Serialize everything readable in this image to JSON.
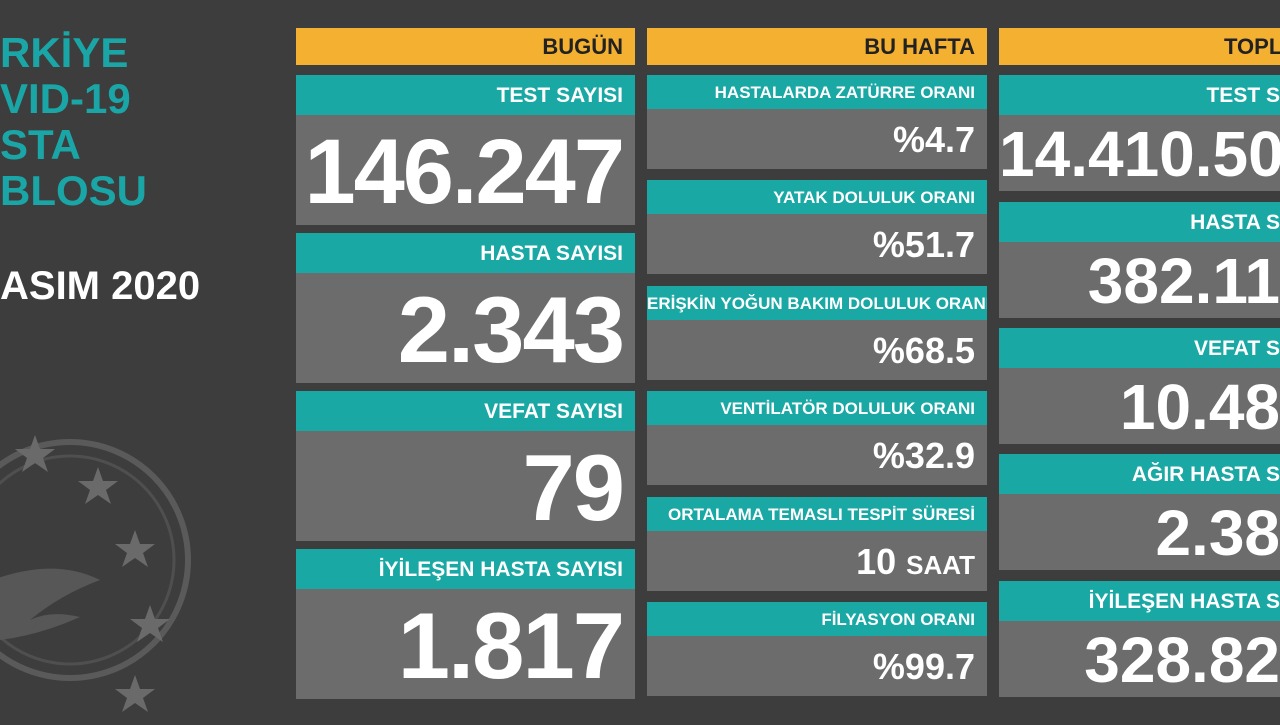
{
  "left": {
    "title": "RKİYE\nVID-19\nSTA\nBLOSU",
    "date": "ASIM 2020"
  },
  "columns": [
    {
      "header": "BUGÜN",
      "cards": [
        {
          "label": "TEST SAYISI",
          "value": "146.247"
        },
        {
          "label": "HASTA SAYISI",
          "value": "2.343"
        },
        {
          "label": "VEFAT SAYISI",
          "value": "79"
        },
        {
          "label": "İYİLEŞEN HASTA SAYISI",
          "value": "1.817"
        }
      ]
    },
    {
      "header": "BU HAFTA",
      "cards": [
        {
          "label": "HASTALARDA ZATÜRRE ORANI",
          "value": "%4.7"
        },
        {
          "label": "YATAK DOLULUK ORANI",
          "value": "%51.7"
        },
        {
          "label": "ERİŞKİN YOĞUN BAKIM DOLULUK ORANI",
          "value": "%68.5"
        },
        {
          "label": "VENTİLATÖR DOLULUK ORANI",
          "value": "%32.9"
        },
        {
          "label": "ORTALAMA TEMASLI TESPİT SÜRESİ",
          "value": "10",
          "unit": "SAAT"
        },
        {
          "label": "FİLYASYON ORANI",
          "value": "%99.7"
        }
      ]
    },
    {
      "header": "TOPL",
      "cards": [
        {
          "label": "TEST S",
          "value": "14.410.50"
        },
        {
          "label": "HASTA S",
          "value": "382.11"
        },
        {
          "label": "VEFAT S",
          "value": "10.48"
        },
        {
          "label": "AĞIR HASTA S",
          "value": "2.38"
        },
        {
          "label": "İYİLEŞEN HASTA S",
          "value": "328.82"
        }
      ]
    }
  ],
  "colors": {
    "background": "#3d3d3d",
    "header": "#f4b031",
    "label": "#1aa8a5",
    "value_box": "#6c6c6c",
    "title_accent": "#1aa6a6"
  }
}
